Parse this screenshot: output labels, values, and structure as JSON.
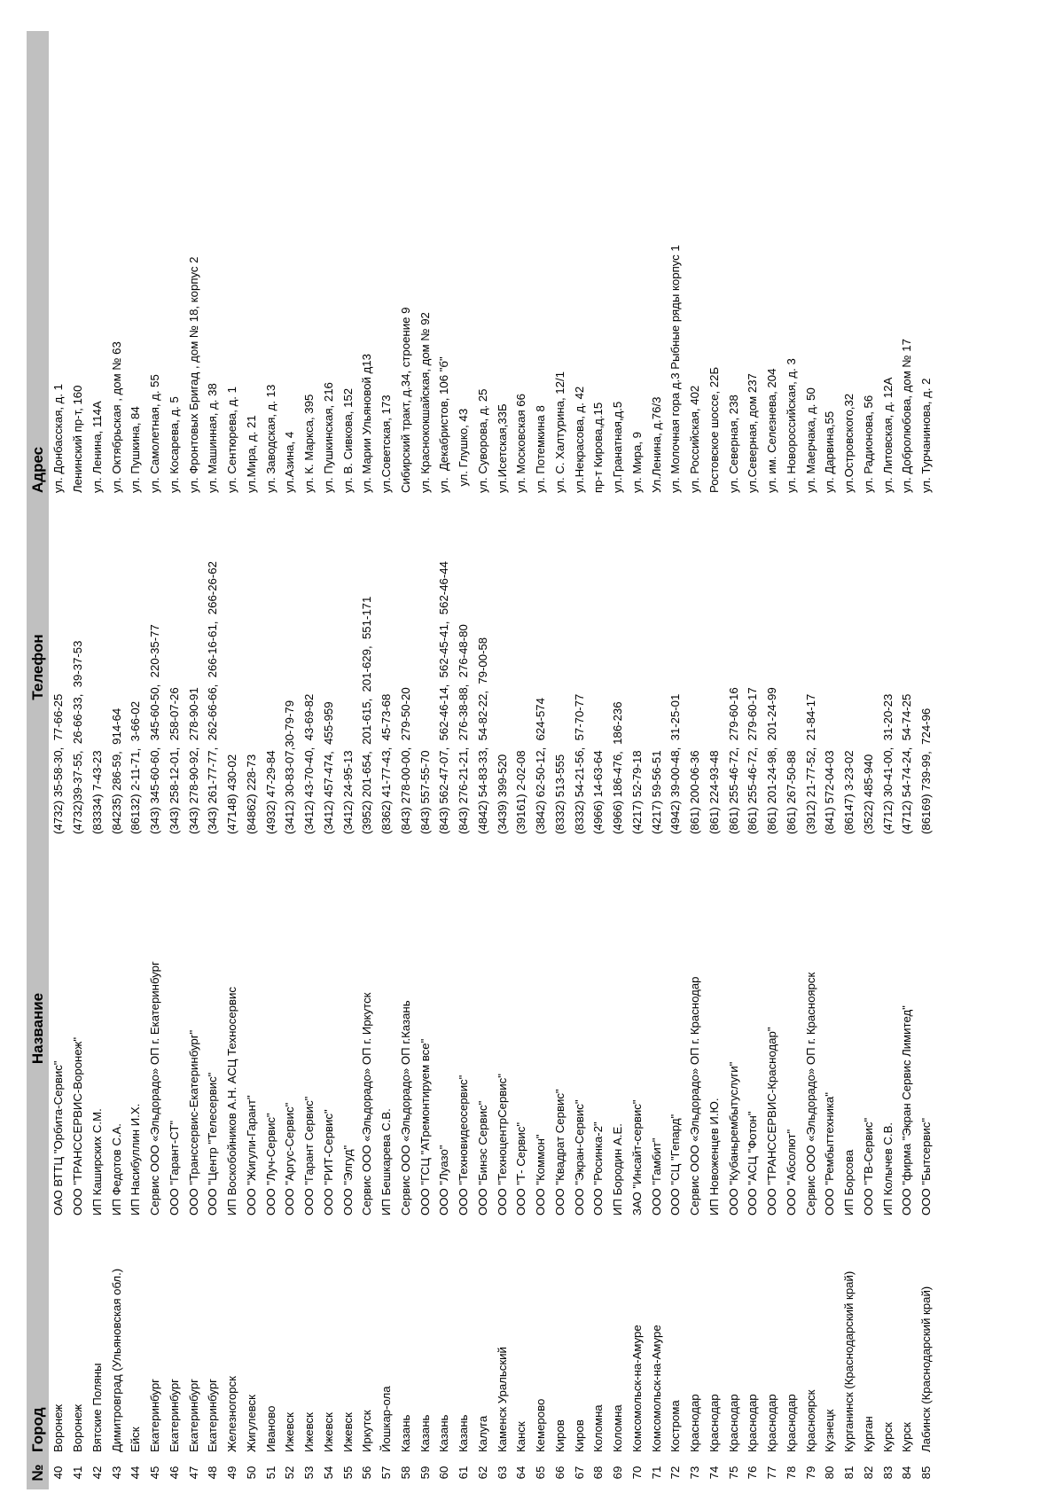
{
  "headers": [
    "№",
    "Город",
    "Название",
    "Телефон",
    "Адрес"
  ],
  "rows": [
    [
      "40",
      "Воронеж",
      "ОАО ВТТЦ \"Орбита-Сервис\"",
      "(4732) 35-58-30,  77-66-25",
      "ул. Донбасская, д. 1"
    ],
    [
      "41",
      "Воронеж",
      "ООО \"ТРАНССЕРВИС-Воронеж\"",
      "(4732)39-37-55,  26-66-33,  39-37-53",
      "Ленинский пр-т, 160"
    ],
    [
      "42",
      "Вятские Поляны",
      "ИП Каширских С.М.",
      "(83334) 7-43-23",
      "ул. Ленина, 114А"
    ],
    [
      "43",
      "Димитровград (Ульяновская обл.)",
      "ИП Федотов С.А.",
      "(84235) 286-59,  914-64",
      "ул. Октябрьская , дом № 63"
    ],
    [
      "44",
      "Ейск",
      "ИП Насибуллин И.Х.",
      "(86132) 2-11-71,  3-66-02",
      "ул. Пушкина, 84"
    ],
    [
      "45",
      "Екатеринбург",
      "Сервис ООО «Эльдорадо» ОП г. Екатеринбург",
      "(343) 345-60-60,  345-60-50,  220-35-77",
      "ул. Самолетная, д. 55"
    ],
    [
      "46",
      "Екатеринбург",
      "ООО \"Гарант-СТ\"",
      "(343) 258-12-01,  258-07-26",
      "ул. Косарева, д. 5"
    ],
    [
      "47",
      "Екатеринбург",
      "ООО \"Транссервис-Екатеринбург\"",
      "(343) 278-90-92,  278-90-91",
      "ул. Фронтовых Бригад , дом № 18, корпус 2"
    ],
    [
      "48",
      "Екатеринбург",
      "ООО \"Центр \"Телесервис\"",
      "(343) 261-77-77,  262-66-66,  266-16-61,  266-26-62",
      "ул. Машинная, д. 38"
    ],
    [
      "49",
      "Железногорск",
      "ИП Воскобойников А.Н. АСЦ Техносервис",
      "(47148) 430-02",
      "ул. Сентюрева, д. 1"
    ],
    [
      "50",
      "Жигулевск",
      "ООО \"Жигули-Гарант\"",
      "(84862) 228-73",
      "ул.Мира, д. 21"
    ],
    [
      "51",
      "Иваново",
      "ООО \"Луч-Сервис\"",
      "(4932) 47-29-84",
      "ул. Заводская, д. 13"
    ],
    [
      "52",
      "Ижевск",
      "ООО \"Аргус-Сервис\"",
      "(3412) 30-83-07,30-79-79",
      "ул.Азина, 4"
    ],
    [
      "53",
      "Ижевск",
      "ООО \"Гарант Сервис\"",
      "(3412) 43-70-40,  43-69-82",
      "ул. К. Маркса, 395"
    ],
    [
      "54",
      "Ижевск",
      "ООО \"РИТ-Сервис\"",
      "(3412) 457-474,  455-959",
      "ул. Пушкинская, 216"
    ],
    [
      "55",
      "Ижевск",
      "ООО \"Элгуд\"",
      "(3412) 24-95-13",
      "ул. В. Сивкова, 152"
    ],
    [
      "56",
      "Иркутск",
      "Сервис ООО «Эльдорадо» ОП г. Иркутск",
      "(3952) 201-654,  201-615,  201-629,  551-171",
      "ул. Марии Ульяновой д13"
    ],
    [
      "57",
      "Йошкар-ола",
      "ИП Бешкарева С.В.",
      "(8362) 41-77-43,  45-73-68",
      "ул.Советская, 173"
    ],
    [
      "58",
      "Казань",
      "Сервис ООО «Эльдорадо» ОП г.Казань",
      "(843) 278-00-00,  279-50-20",
      "Сибирский тракт, д.34, строение 9"
    ],
    [
      "59",
      "Казань",
      "ООО \"ГСЦ \"АТремонтируем все\"",
      "(843) 557-55-70",
      "ул. Краснококшайская, дом № 92"
    ],
    [
      "60",
      "Казань",
      "ООО \"Луазо\"",
      "(843) 562-47-07,  562-46-14,  562-45-41,  562-46-44",
      "ул.  Декабристов, 106 \"б\""
    ],
    [
      "61",
      "Казань",
      "ООО \"Техновидеосервис\"",
      "(843) 276-21-21,  276-38-88,  276-48-80",
      "  ул. Глушко, 43"
    ],
    [
      "62",
      "Калуга",
      "ООО \"Бинэс Сервис\"",
      "(4842) 54-83-33,  54-82-22,  79-00-58",
      "ул. Суворова, д. 25"
    ],
    [
      "63",
      "Каменск Уральский",
      "ООО \"ТехноцентрСервис\"",
      "(3439) 399-520",
      "ул.Исетская,33Б"
    ],
    [
      "64",
      "Канск",
      "ООО \"Т- Сервис\"",
      "(39161) 2-02-08",
      "ул. Московская 66"
    ],
    [
      "65",
      "Кемерово",
      "ООО \"Коммон\"",
      "(3842) 62-50-12,  624-574",
      "ул. Потемкина 8"
    ],
    [
      "66",
      "Киров",
      "ООО \"Квадрат Сервис\"",
      "(8332) 513-555",
      "ул. С. Халтурина, 12/1"
    ],
    [
      "67",
      "Киров",
      "ООО \"Экран-Сервис\"",
      "(8332) 54-21-56,  57-70-77",
      "ул.Некрасова, д. 42"
    ],
    [
      "68",
      "Коломна",
      "ООО \"Росинка-2\"",
      "(4966) 14-63-64",
      "пр-т Кирова,д.15"
    ],
    [
      "69",
      "Коломна",
      "ИП Бородин А.Е.",
      "(4966) 186-476,  186-236",
      "ул.Гранатная,д.5"
    ],
    [
      "70",
      "Комсомольск-на-Амуре",
      "ЗАО \"Инсайт-сервис\"",
      "(4217) 52-79-18",
      "ул. Мира, 9"
    ],
    [
      "71",
      "Комсомольск-на-Амуре",
      "ООО \"Гамбит\"",
      "(4217) 59-56-51",
      "Ул.Ленина, д.76/3"
    ],
    [
      "72",
      "Кострома",
      "ООО \"СЦ \"Гепард\"",
      "(4942) 39-00-48,  31-25-01",
      "ул. Молочная гора д.3 Рыбные ряды корпус 1"
    ],
    [
      "73",
      "Краснодар",
      "Сервис ООО «Эльдорадо» ОП г. Краснодар",
      "(861) 200-06-36",
      "ул. Российская, 402"
    ],
    [
      "74",
      "Краснодар",
      "ИП Новоженцев И.Ю.",
      "(861) 224-93-48",
      "Ростовское шоссе, 22Б"
    ],
    [
      "75",
      "Краснодар",
      "ООО \"Кубаньрембытуслуги\"",
      "(861) 255-46-72,  279-60-16",
      "ул. Северная, 238"
    ],
    [
      "76",
      "Краснодар",
      "ООО \"АСЦ \"Фотон\"",
      "(861) 255-46-72,  279-60-17",
      "ул.Северная, дом 237"
    ],
    [
      "77",
      "Краснодар",
      "ООО \"ТРАНССЕРВИС-Краснодар\"",
      "(861) 201-24-98,  201-24-99",
      "ул. им. Селезнева, 204"
    ],
    [
      "78",
      "Краснодар",
      "ООО \"Абсолют\"",
      "(861) 267-50-88",
      "ул. Новороссийская, д. 3"
    ],
    [
      "79",
      "Красноярск",
      "Сервис ООО «Эльдорадо» ОП г. Красноярск",
      "(3912) 21-77-52,  21-84-17",
      "ул. Маерчака, д. 50"
    ],
    [
      "80",
      "Кузнецк",
      "ООО \"Рембыттехника\"",
      "(841) 572-04-03",
      "ул. Дарвина,55"
    ],
    [
      "81",
      "Курганинск (Краснодарский край)",
      "ИП Борсова",
      "(86147) 3-23-02",
      "ул.Островского,32"
    ],
    [
      "82",
      "Курган",
      "ООО \"ТВ-Сервис\"",
      "(3522) 485-940",
      "ул. Радионова, 56"
    ],
    [
      "83",
      "Курск",
      "ИП Колычев С.В.",
      "(4712) 30-41-00,  31-20-23",
      "ул. Литовская, д. 12А"
    ],
    [
      "84",
      "Курск",
      "ООО \"фирма \"Экран Сервис Лимитед\"",
      "(4712) 54-74-24,  54-74-25",
      "ул. Добролюбова, дом № 17"
    ],
    [
      "85",
      "Лабинск (Краснодарский край)",
      "ООО \"Бытсервис\"",
      "(86169) 739-99,  724-96",
      "ул. Турчанинова, д. 2"
    ]
  ]
}
